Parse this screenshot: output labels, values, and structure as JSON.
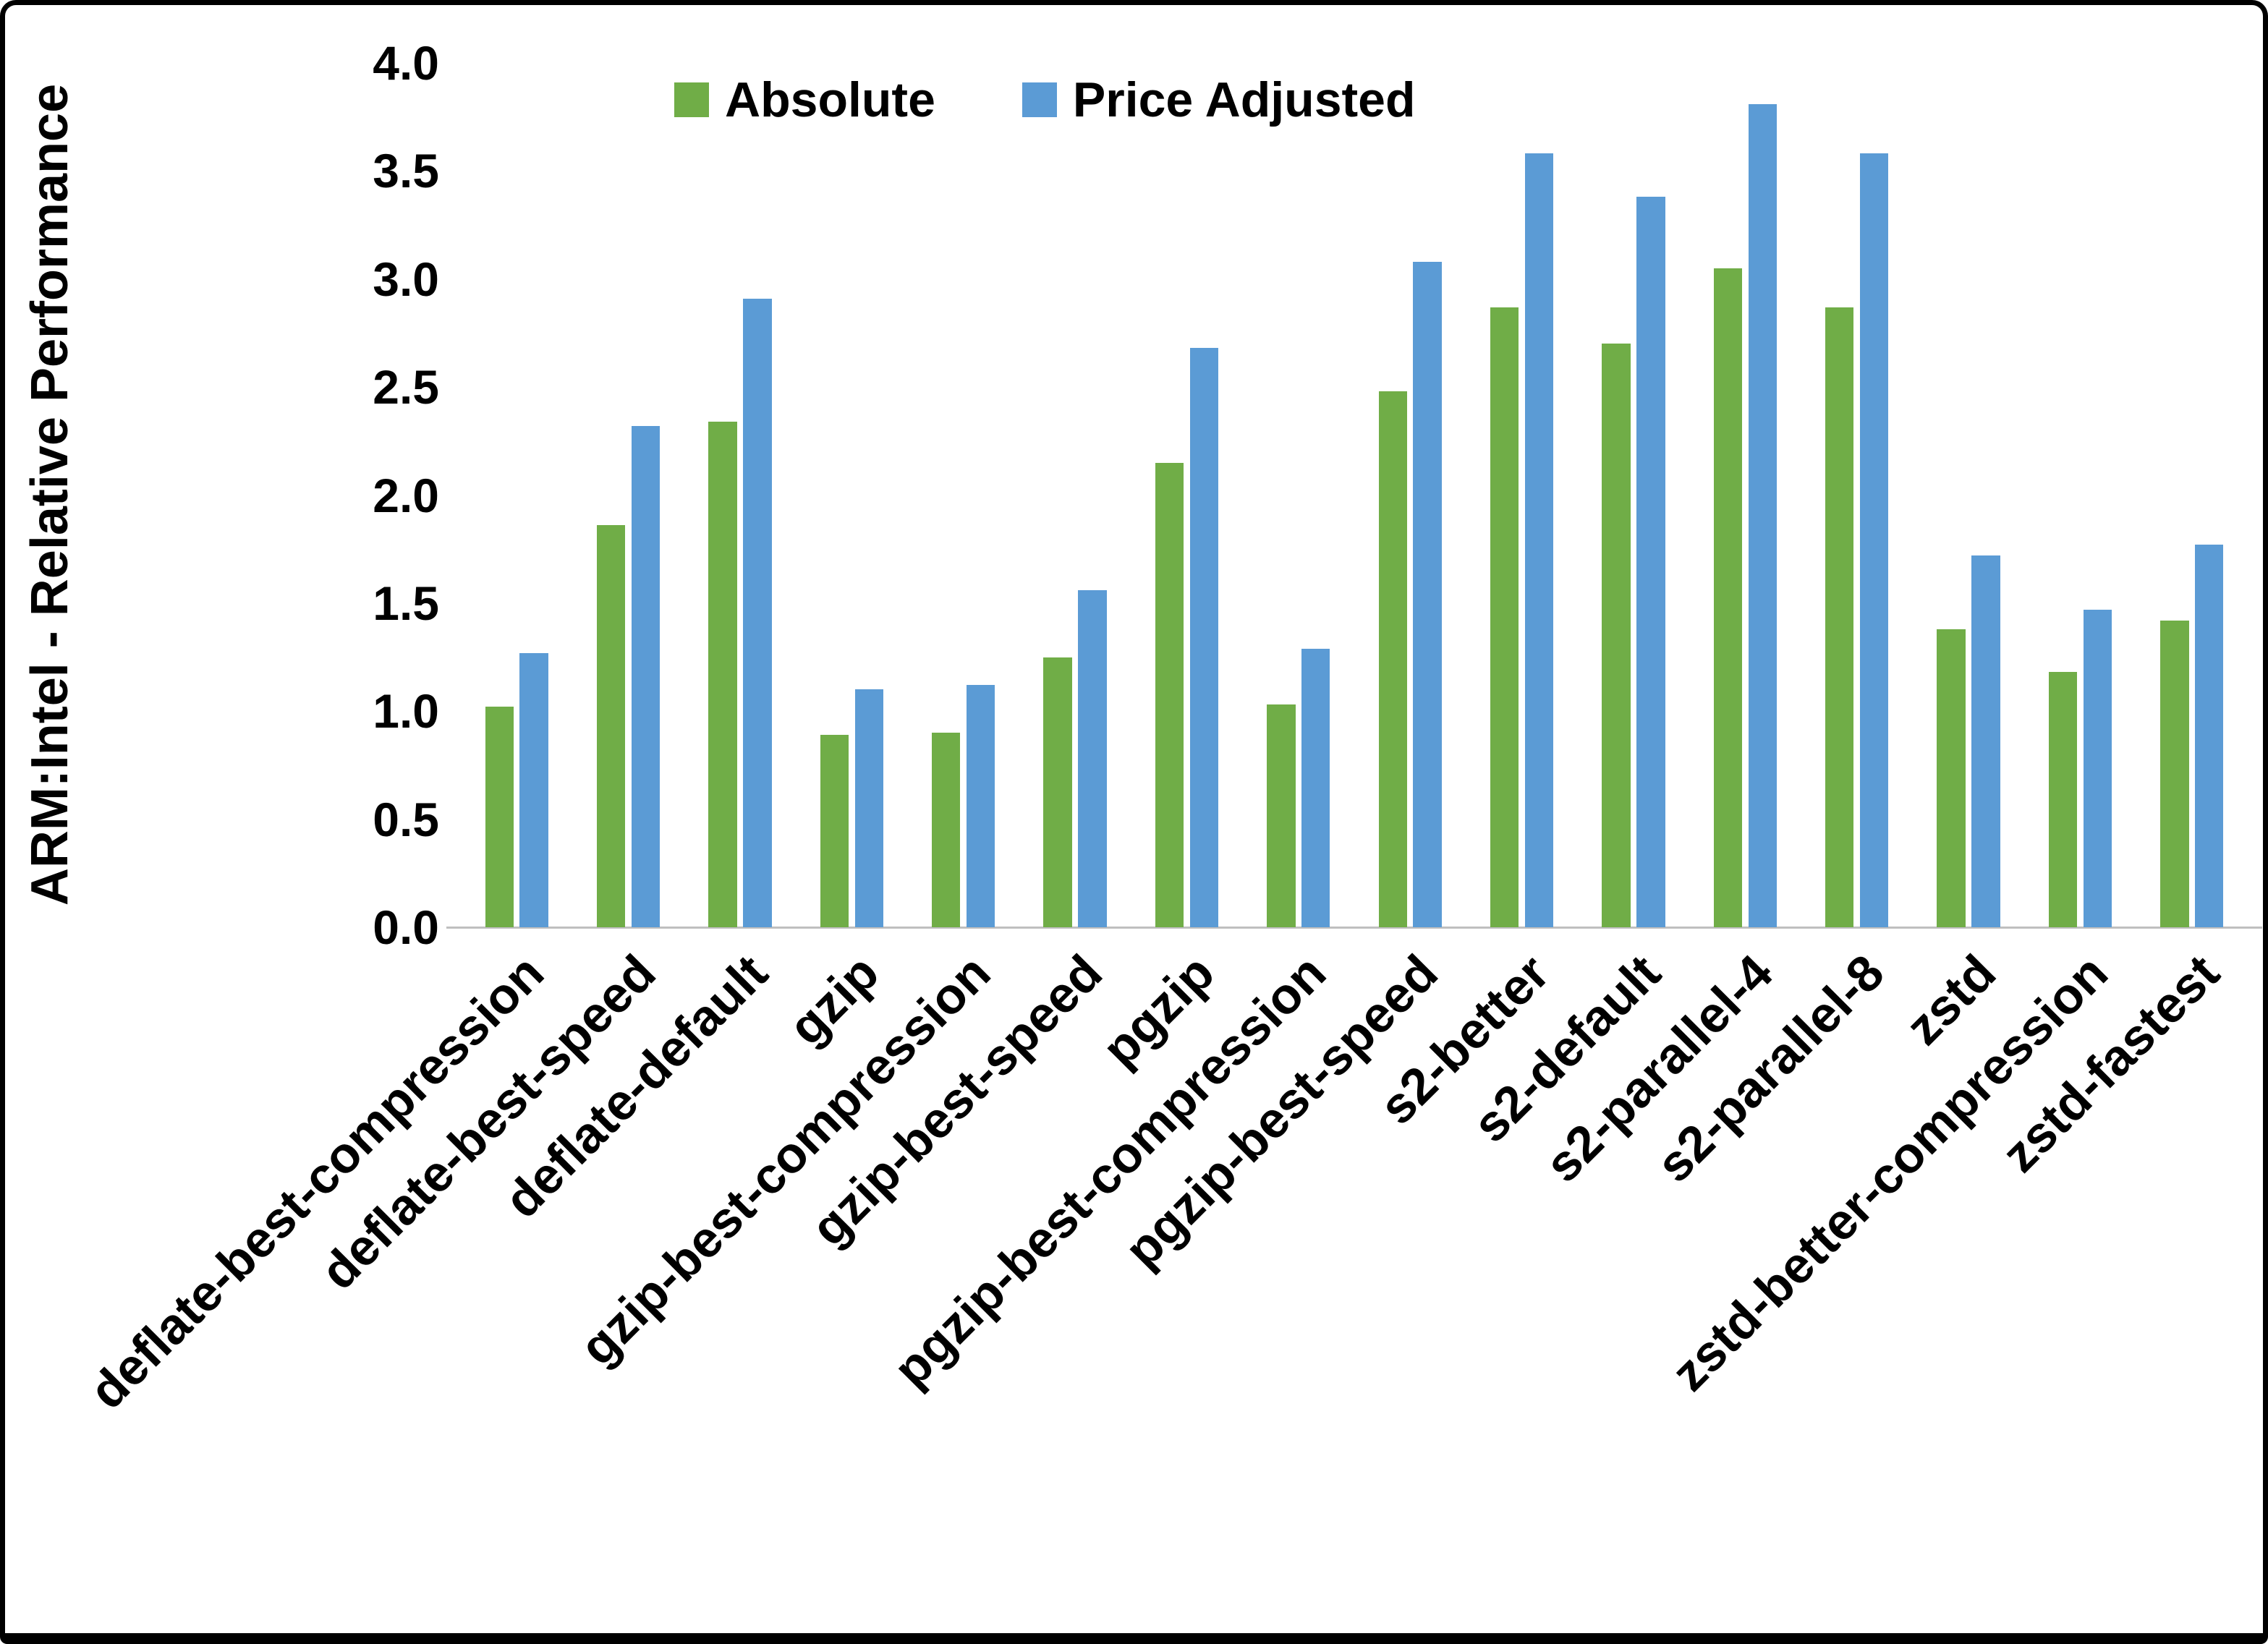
{
  "frame": {
    "background": "#FFFFFF",
    "border_color": "#000000"
  },
  "chart_data": {
    "type": "bar",
    "title": "",
    "xlabel": "",
    "ylabel": "ARM:Intel - Relative Performance",
    "ylim": [
      0,
      4
    ],
    "ytick_step": 0.5,
    "grid": false,
    "legend_position": "top",
    "categories": [
      "deflate-best-compression",
      "deflate-best-speed",
      "deflate-default",
      "gzip",
      "gzip-best-compression",
      "gzip-best-speed",
      "pgzip",
      "pgzip-best-compression",
      "pgzip-best-speed",
      "s2-better",
      "s2-default",
      "s2-parallel-4",
      "s2-parallel-8",
      "zstd",
      "zstd-better-compression",
      "zstd-fastest"
    ],
    "series": [
      {
        "name": "Absolute",
        "color": "#70AD47",
        "values": [
          1.02,
          1.86,
          2.34,
          0.89,
          0.9,
          1.25,
          2.15,
          1.03,
          2.48,
          2.87,
          2.7,
          3.05,
          2.87,
          1.38,
          1.18,
          1.42
        ]
      },
      {
        "name": "Price Adjusted",
        "color": "#5B9BD5",
        "values": [
          1.27,
          2.32,
          2.91,
          1.1,
          1.12,
          1.56,
          2.68,
          1.29,
          3.08,
          3.58,
          3.38,
          3.81,
          3.58,
          1.72,
          1.47,
          1.77
        ]
      }
    ]
  }
}
